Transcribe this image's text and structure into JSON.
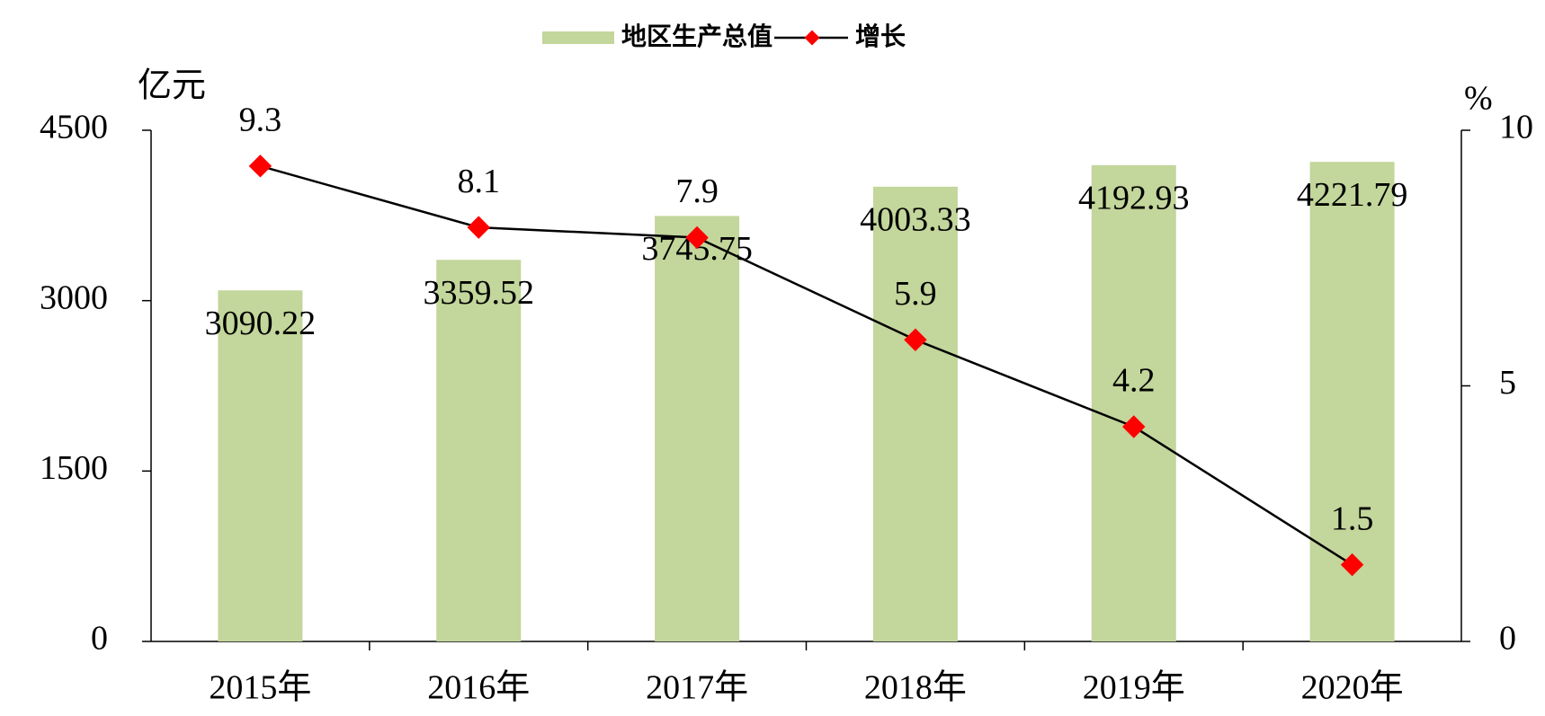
{
  "chart_data": {
    "type": "bar-line",
    "categories": [
      "2015年",
      "2016年",
      "2017年",
      "2018年",
      "2019年",
      "2020年"
    ],
    "series": [
      {
        "name": "地区生产总值",
        "type": "bar",
        "color": "#c3d69b",
        "values": [
          3090.22,
          3359.52,
          3745.75,
          4003.33,
          4192.93,
          4221.79
        ]
      },
      {
        "name": "增长",
        "type": "line",
        "axis": "y2",
        "color": "#000000",
        "marker_color": "#ff0000",
        "values": [
          9.3,
          8.1,
          7.9,
          5.9,
          4.2,
          1.5
        ]
      }
    ],
    "y_label": "亿元",
    "y2_label": "%",
    "ylim": [
      0,
      4500
    ],
    "yticks": [
      0,
      1500,
      3000,
      4500
    ],
    "y2lim": [
      0,
      10
    ],
    "y2ticks": [
      0,
      5,
      10
    ]
  }
}
